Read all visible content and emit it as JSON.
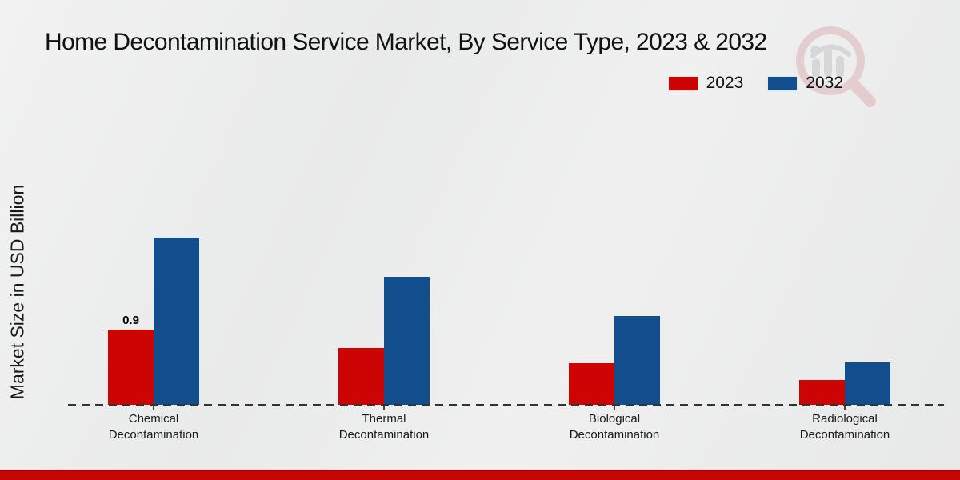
{
  "title": "Home Decontamination Service Market, By Service Type, 2023 & 2032",
  "colors": {
    "accent_red": "#cc0404",
    "accent_blue": "#124d8d",
    "bottom_band_red": "#c60505",
    "axis_line": "#333333"
  },
  "watermark_icon": "magnifier-bar-chart-logo",
  "chart_data": {
    "type": "bar",
    "title": "Home Decontamination Service Market, By Service Type, 2023 & 2032",
    "xlabel": "",
    "ylabel": "Market Size in USD Billion",
    "units": "USD Billion",
    "categories": [
      "Chemical Decontamination",
      "Thermal Decontamination",
      "Biological Decontamination",
      "Radiological Decontamination"
    ],
    "series": [
      {
        "name": "2023",
        "color": "#cc0404",
        "values": [
          0.9,
          0.68,
          0.5,
          0.3
        ]
      },
      {
        "name": "2032",
        "color": "#124d8d",
        "values": [
          2.0,
          1.53,
          1.06,
          0.51
        ]
      }
    ],
    "ylim": [
      0,
      2.2
    ],
    "grid": false,
    "legend_position": "top-right",
    "baseline_style": "dashed",
    "value_labels": [
      {
        "series_index": 0,
        "category_index": 0,
        "text": "0.9"
      }
    ]
  }
}
